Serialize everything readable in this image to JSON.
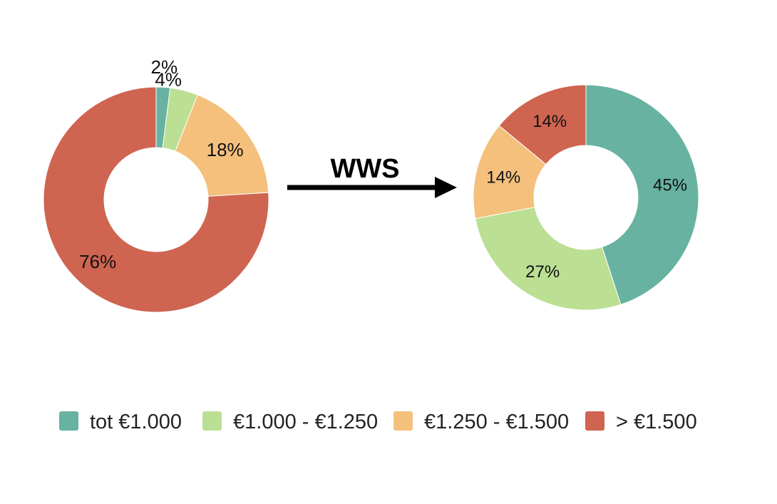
{
  "arrow": {
    "label": "WWS"
  },
  "legend": {
    "placement": "bottom",
    "items": [
      {
        "label": "tot €1.000",
        "color": "#67b2a0"
      },
      {
        "label": "€1.000 - €1.250",
        "color": "#bbdf93"
      },
      {
        "label": "€1.250 - €1.500",
        "color": "#f4c07c"
      },
      {
        "label": "> €1.500",
        "color": "#cf6450"
      }
    ]
  },
  "chart_data": [
    {
      "type": "pie",
      "variant": "donut",
      "categories": [
        "tot €1.000",
        "€1.000 - €1.250",
        "€1.250 - €1.500",
        "> €1.500"
      ],
      "values": [
        2,
        4,
        18,
        76
      ],
      "labels": [
        "2%",
        "4%",
        "18%",
        "76%"
      ],
      "colors": [
        "#67b2a0",
        "#bbdf93",
        "#f4c07c",
        "#cf6450"
      ]
    },
    {
      "type": "pie",
      "variant": "donut",
      "categories": [
        "tot €1.000",
        "€1.000 - €1.250",
        "€1.250 - €1.500",
        "> €1.500"
      ],
      "values": [
        45,
        27,
        14,
        14
      ],
      "labels": [
        "45%",
        "27%",
        "14%",
        "14%"
      ],
      "colors": [
        "#67b2a0",
        "#bbdf93",
        "#f4c07c",
        "#cf6450"
      ]
    }
  ]
}
